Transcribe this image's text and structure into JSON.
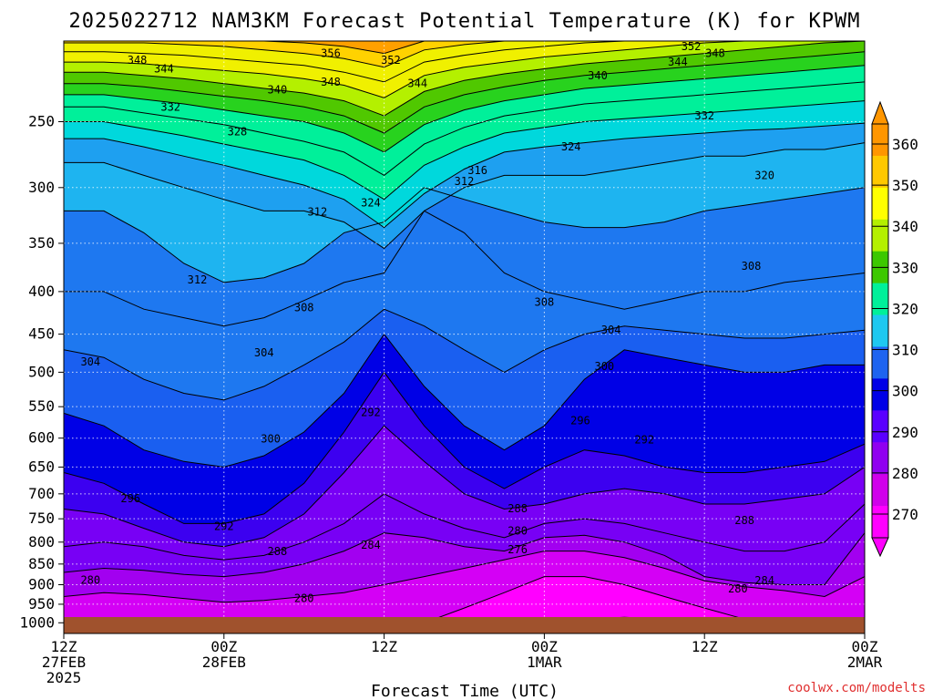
{
  "title": "2025022712 NAM3KM Forecast Potential Temperature (K) for KPWM",
  "credit": "coolwx.com/modelts",
  "chart_data": {
    "type": "heatmap",
    "title": "2025022712 NAM3KM Forecast Potential Temperature (K) for KPWM",
    "xlabel": "Forecast Time (UTC)",
    "ylabel": "",
    "x_ticks": [
      {
        "hours": 0,
        "lines": [
          "12Z",
          "27FEB",
          "2025"
        ]
      },
      {
        "hours": 12,
        "lines": [
          "00Z",
          "28FEB"
        ]
      },
      {
        "hours": 24,
        "lines": [
          "12Z"
        ]
      },
      {
        "hours": 36,
        "lines": [
          "00Z",
          "1MAR"
        ]
      },
      {
        "hours": 48,
        "lines": [
          "12Z"
        ]
      },
      {
        "hours": 60,
        "lines": [
          "00Z",
          "2MAR"
        ]
      }
    ],
    "xlim": [
      0,
      60
    ],
    "y_ticks": [
      250,
      300,
      350,
      400,
      450,
      500,
      550,
      600,
      650,
      700,
      750,
      800,
      850,
      900,
      950,
      1000
    ],
    "ylim": [
      1030,
      200
    ],
    "y_scale": "log",
    "colorbar": {
      "levels": [
        270,
        280,
        290,
        300,
        310,
        320,
        330,
        340,
        350,
        360
      ],
      "colors": [
        "#ff00ff",
        "#d000ea",
        "#9000f0",
        "#5a00ff",
        "#0000e6",
        "#1e64f0",
        "#1ec8f0",
        "#00f09a",
        "#3cc800",
        "#b4f000",
        "#ffff00",
        "#ffc800",
        "#ff9600"
      ]
    },
    "grid": true,
    "contour_interval": 4,
    "time_hours": [
      0,
      3,
      6,
      9,
      12,
      15,
      18,
      21,
      24,
      27,
      30,
      33,
      36,
      39,
      42,
      45,
      48,
      51,
      54,
      57,
      60
    ],
    "theta_levels": [
      272,
      276,
      280,
      284,
      288,
      292,
      296,
      300,
      304,
      308,
      312,
      316,
      320,
      324,
      328,
      332,
      336,
      340,
      344,
      348,
      352,
      356
    ],
    "isentrope_pressure_hPa": {
      "272": [
        1030,
        1030,
        1030,
        1030,
        1030,
        1030,
        1030,
        1030,
        1030,
        1030,
        1030,
        1030,
        1000,
        990,
        985,
        990,
        1030,
        1030,
        1030,
        1030,
        1030
      ],
      "276": [
        1030,
        1030,
        1030,
        1030,
        1030,
        1030,
        1030,
        1030,
        1030,
        1000,
        960,
        920,
        880,
        880,
        900,
        930,
        960,
        990,
        1000,
        1030,
        1030
      ],
      "280": [
        930,
        920,
        925,
        935,
        945,
        940,
        930,
        920,
        900,
        880,
        860,
        840,
        820,
        820,
        835,
        860,
        890,
        905,
        915,
        930,
        880
      ],
      "284": [
        870,
        860,
        865,
        875,
        880,
        870,
        850,
        820,
        780,
        790,
        810,
        820,
        790,
        785,
        800,
        830,
        880,
        895,
        900,
        900,
        780
      ],
      "288": [
        810,
        800,
        810,
        830,
        840,
        830,
        800,
        760,
        700,
        740,
        770,
        790,
        760,
        750,
        760,
        780,
        800,
        820,
        820,
        800,
        720
      ],
      "292": [
        730,
        740,
        770,
        800,
        810,
        790,
        740,
        660,
        580,
        640,
        700,
        730,
        720,
        700,
        690,
        700,
        720,
        720,
        710,
        700,
        650
      ],
      "296": [
        660,
        680,
        720,
        760,
        760,
        740,
        680,
        590,
        500,
        580,
        650,
        690,
        650,
        620,
        630,
        650,
        660,
        660,
        650,
        640,
        610
      ],
      "300": [
        560,
        580,
        620,
        640,
        650,
        630,
        590,
        530,
        450,
        520,
        580,
        620,
        580,
        510,
        470,
        480,
        490,
        500,
        500,
        490,
        490
      ],
      "304": [
        470,
        480,
        510,
        530,
        540,
        520,
        490,
        460,
        420,
        440,
        470,
        500,
        470,
        450,
        440,
        445,
        450,
        455,
        455,
        450,
        445
      ],
      "308": [
        400,
        400,
        420,
        430,
        440,
        430,
        410,
        390,
        380,
        320,
        340,
        380,
        400,
        410,
        420,
        410,
        400,
        400,
        390,
        385,
        380
      ],
      "312": [
        320,
        320,
        340,
        370,
        390,
        385,
        370,
        340,
        330,
        300,
        310,
        320,
        330,
        335,
        335,
        330,
        320,
        315,
        310,
        305,
        300
      ],
      "316": [
        280,
        280,
        290,
        300,
        310,
        320,
        320,
        330,
        355,
        320,
        300,
        290,
        290,
        290,
        285,
        280,
        275,
        275,
        270,
        270,
        265
      ],
      "320": [
        262,
        262,
        268,
        275,
        282,
        290,
        298,
        310,
        335,
        305,
        285,
        272,
        268,
        265,
        262,
        260,
        258,
        256,
        255,
        253,
        251
      ],
      "324": [
        250,
        250,
        255,
        260,
        266,
        272,
        278,
        290,
        310,
        282,
        268,
        258,
        254,
        250,
        248,
        246,
        244,
        242,
        240,
        238,
        236
      ],
      "328": [
        240,
        240,
        244,
        248,
        252,
        258,
        264,
        272,
        290,
        266,
        254,
        246,
        242,
        238,
        236,
        234,
        232,
        230,
        228,
        226,
        224
      ],
      "332": [
        232,
        232,
        235,
        238,
        242,
        246,
        250,
        258,
        272,
        252,
        242,
        236,
        232,
        228,
        226,
        224,
        222,
        220,
        218,
        216,
        214
      ],
      "336": [
        225,
        225,
        227,
        230,
        233,
        236,
        240,
        246,
        258,
        240,
        232,
        227,
        223,
        220,
        218,
        216,
        214,
        212,
        210,
        208,
        206
      ],
      "340": [
        218,
        218,
        220,
        222,
        225,
        228,
        231,
        236,
        246,
        230,
        223,
        219,
        216,
        213,
        211,
        209,
        207,
        205,
        203,
        201,
        200
      ],
      "344": [
        212,
        212,
        213,
        215,
        217,
        219,
        222,
        226,
        234,
        220,
        215,
        212,
        209,
        207,
        205,
        203,
        201,
        200,
        200,
        200,
        200
      ],
      "348": [
        206,
        206,
        207,
        208,
        210,
        212,
        214,
        218,
        224,
        212,
        208,
        205,
        203,
        201,
        200,
        200,
        200,
        200,
        200,
        200,
        200
      ],
      "352": [
        201,
        201,
        201,
        202,
        203,
        205,
        207,
        210,
        215,
        205,
        202,
        200,
        200,
        200,
        200,
        200,
        200,
        200,
        200,
        200,
        200
      ],
      "356": [
        200,
        200,
        200,
        200,
        200,
        200,
        201,
        203,
        207,
        200,
        200,
        200,
        200,
        200,
        200,
        200,
        200,
        200,
        200,
        200,
        200
      ]
    },
    "contour_labels": [
      {
        "text": "356",
        "t": 20.0,
        "p": 207
      },
      {
        "text": "352",
        "t": 24.5,
        "p": 211
      },
      {
        "text": "352",
        "t": 47.0,
        "p": 203
      },
      {
        "text": "348",
        "t": 48.8,
        "p": 207
      },
      {
        "text": "348",
        "t": 5.5,
        "p": 211
      },
      {
        "text": "344",
        "t": 7.5,
        "p": 216
      },
      {
        "text": "344",
        "t": 26.5,
        "p": 225
      },
      {
        "text": "344",
        "t": 46.0,
        "p": 212
      },
      {
        "text": "348",
        "t": 20.0,
        "p": 224
      },
      {
        "text": "340",
        "t": 16.0,
        "p": 229
      },
      {
        "text": "340",
        "t": 40.0,
        "p": 220
      },
      {
        "text": "332",
        "t": 8.0,
        "p": 240
      },
      {
        "text": "328",
        "t": 13.0,
        "p": 257
      },
      {
        "text": "332",
        "t": 48.0,
        "p": 246
      },
      {
        "text": "324",
        "t": 38.0,
        "p": 268
      },
      {
        "text": "320",
        "t": 52.5,
        "p": 290
      },
      {
        "text": "316",
        "t": 31.0,
        "p": 286
      },
      {
        "text": "312",
        "t": 30.0,
        "p": 295
      },
      {
        "text": "312",
        "t": 19.0,
        "p": 321
      },
      {
        "text": "324",
        "t": 23.0,
        "p": 313
      },
      {
        "text": "312",
        "t": 10.0,
        "p": 387
      },
      {
        "text": "308",
        "t": 18.0,
        "p": 418
      },
      {
        "text": "308",
        "t": 36.0,
        "p": 412
      },
      {
        "text": "308",
        "t": 51.5,
        "p": 373
      },
      {
        "text": "304",
        "t": 2.0,
        "p": 486
      },
      {
        "text": "304",
        "t": 15.0,
        "p": 474
      },
      {
        "text": "304",
        "t": 41.0,
        "p": 445
      },
      {
        "text": "300",
        "t": 40.5,
        "p": 492
      },
      {
        "text": "300",
        "t": 15.5,
        "p": 601
      },
      {
        "text": "296",
        "t": 38.7,
        "p": 572
      },
      {
        "text": "292",
        "t": 23.0,
        "p": 559
      },
      {
        "text": "292",
        "t": 43.5,
        "p": 603
      },
      {
        "text": "296",
        "t": 5.0,
        "p": 709
      },
      {
        "text": "292",
        "t": 12.0,
        "p": 766
      },
      {
        "text": "288",
        "t": 16.0,
        "p": 821
      },
      {
        "text": "284",
        "t": 23.0,
        "p": 807
      },
      {
        "text": "288",
        "t": 34.0,
        "p": 729
      },
      {
        "text": "280",
        "t": 34.0,
        "p": 776
      },
      {
        "text": "276",
        "t": 34.0,
        "p": 817
      },
      {
        "text": "288",
        "t": 51.0,
        "p": 753
      },
      {
        "text": "280",
        "t": 2.0,
        "p": 889
      },
      {
        "text": "280",
        "t": 18.0,
        "p": 935
      },
      {
        "text": "280",
        "t": 50.5,
        "p": 910
      },
      {
        "text": "284",
        "t": 52.5,
        "p": 890
      }
    ]
  }
}
